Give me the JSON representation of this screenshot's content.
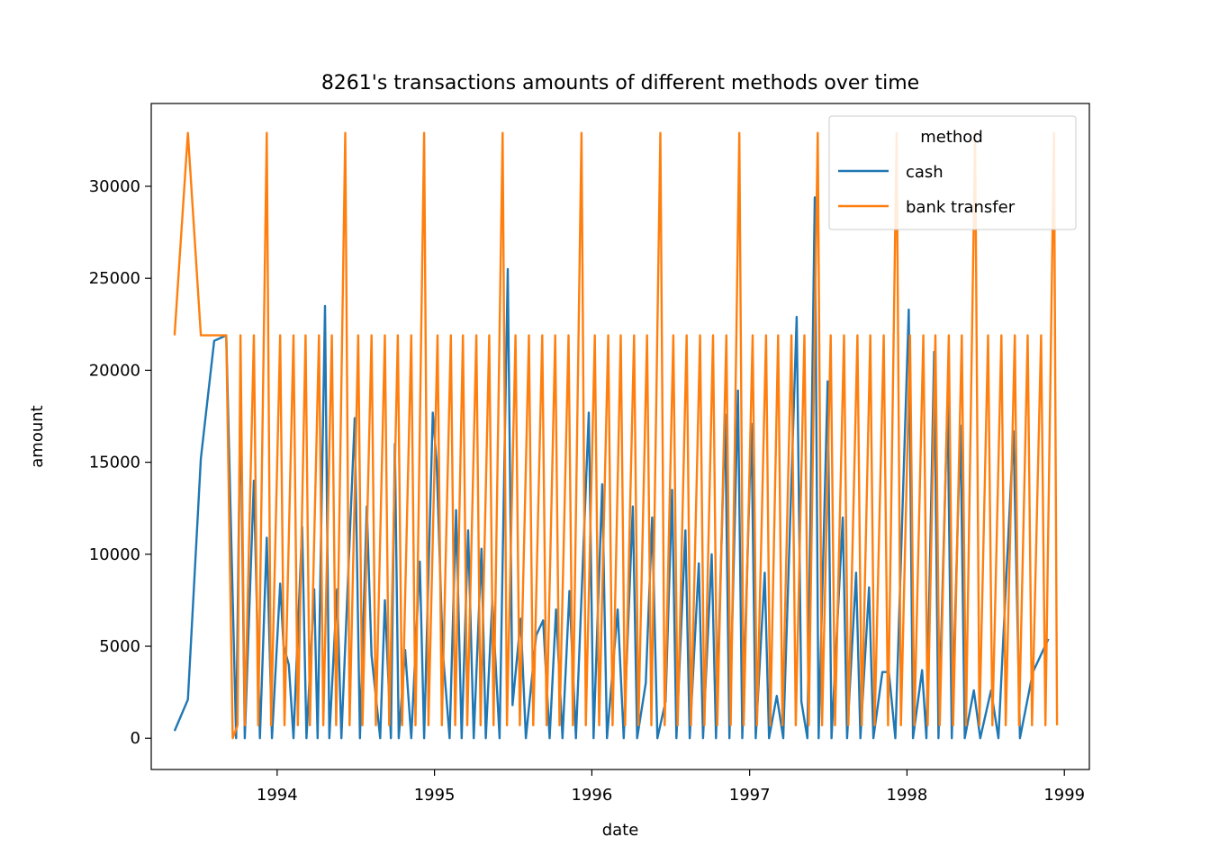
{
  "chart_data": {
    "type": "line",
    "title": "8261's transactions amounts of different methods over time",
    "xlabel": "date",
    "ylabel": "amount",
    "xlim": [
      "1993-03-15",
      "1999-02-28"
    ],
    "ylim": [
      -1700,
      34500
    ],
    "x_ticks": [
      "1994",
      "1995",
      "1996",
      "1997",
      "1998",
      "1999"
    ],
    "y_ticks": [
      "0",
      "5000",
      "10000",
      "15000",
      "20000",
      "25000",
      "30000"
    ],
    "grid": false,
    "legend": {
      "title": "method",
      "position": "upper right",
      "entries": [
        "cash",
        "bank transfer"
      ]
    },
    "series": [
      {
        "name": "cash",
        "color": "#1f77b4",
        "points": [
          [
            "1993-05-08",
            400
          ],
          [
            "1993-06-08",
            2100
          ],
          [
            "1993-07-08",
            15200
          ],
          [
            "1993-08-08",
            21600
          ],
          [
            "1993-09-05",
            21900
          ],
          [
            "1993-09-28",
            0
          ],
          [
            "1993-10-08",
            18700
          ],
          [
            "1993-10-18",
            0
          ],
          [
            "1993-11-08",
            14000
          ],
          [
            "1993-11-22",
            0
          ],
          [
            "1993-12-08",
            10900
          ],
          [
            "1993-12-20",
            0
          ],
          [
            "1994-01-08",
            8400
          ],
          [
            "1994-01-16",
            5000
          ],
          [
            "1994-01-28",
            4000
          ],
          [
            "1994-02-08",
            0
          ],
          [
            "1994-02-28",
            11500
          ],
          [
            "1994-03-10",
            0
          ],
          [
            "1994-03-28",
            8100
          ],
          [
            "1994-04-05",
            0
          ],
          [
            "1994-04-22",
            23500
          ],
          [
            "1994-05-02",
            0
          ],
          [
            "1994-05-20",
            8100
          ],
          [
            "1994-05-30",
            0
          ],
          [
            "1994-06-30",
            17400
          ],
          [
            "1994-07-12",
            0
          ],
          [
            "1994-07-28",
            12600
          ],
          [
            "1994-08-08",
            4500
          ],
          [
            "1994-08-28",
            0
          ],
          [
            "1994-09-08",
            7500
          ],
          [
            "1994-09-22",
            0
          ],
          [
            "1994-10-01",
            16000
          ],
          [
            "1994-10-10",
            0
          ],
          [
            "1994-10-25",
            4800
          ],
          [
            "1994-11-08",
            0
          ],
          [
            "1994-11-28",
            9600
          ],
          [
            "1994-12-08",
            0
          ],
          [
            "1994-12-28",
            17700
          ],
          [
            "1995-01-06",
            15000
          ],
          [
            "1995-01-20",
            4800
          ],
          [
            "1995-02-05",
            0
          ],
          [
            "1995-02-20",
            12400
          ],
          [
            "1995-03-05",
            0
          ],
          [
            "1995-03-20",
            11300
          ],
          [
            "1995-04-02",
            0
          ],
          [
            "1995-04-20",
            10300
          ],
          [
            "1995-04-30",
            0
          ],
          [
            "1995-05-15",
            7500
          ],
          [
            "1995-06-01",
            0
          ],
          [
            "1995-06-20",
            25500
          ],
          [
            "1995-07-01",
            1800
          ],
          [
            "1995-07-20",
            6500
          ],
          [
            "1995-08-01",
            0
          ],
          [
            "1995-08-25",
            5600
          ],
          [
            "1995-09-10",
            6400
          ],
          [
            "1995-09-25",
            0
          ],
          [
            "1995-10-10",
            7000
          ],
          [
            "1995-10-25",
            0
          ],
          [
            "1995-11-10",
            8000
          ],
          [
            "1995-11-25",
            0
          ],
          [
            "1995-12-25",
            17700
          ],
          [
            "1996-01-05",
            0
          ],
          [
            "1996-01-25",
            13800
          ],
          [
            "1996-02-05",
            0
          ],
          [
            "1996-03-01",
            7000
          ],
          [
            "1996-03-15",
            0
          ],
          [
            "1996-04-05",
            12600
          ],
          [
            "1996-04-15",
            0
          ],
          [
            "1996-05-05",
            3000
          ],
          [
            "1996-05-20",
            12000
          ],
          [
            "1996-06-01",
            0
          ],
          [
            "1996-06-20",
            2000
          ],
          [
            "1996-07-05",
            13500
          ],
          [
            "1996-07-15",
            0
          ],
          [
            "1996-08-05",
            11300
          ],
          [
            "1996-08-15",
            0
          ],
          [
            "1996-09-05",
            9500
          ],
          [
            "1996-09-15",
            0
          ],
          [
            "1996-10-05",
            10000
          ],
          [
            "1996-10-15",
            0
          ],
          [
            "1996-11-05",
            17600
          ],
          [
            "1996-11-15",
            0
          ],
          [
            "1996-12-05",
            18900
          ],
          [
            "1996-12-15",
            0
          ],
          [
            "1997-01-05",
            17100
          ],
          [
            "1997-01-15",
            0
          ],
          [
            "1997-02-05",
            9000
          ],
          [
            "1997-02-15",
            0
          ],
          [
            "1997-03-05",
            2300
          ],
          [
            "1997-03-20",
            0
          ],
          [
            "1997-04-20",
            22900
          ],
          [
            "1997-05-01",
            2000
          ],
          [
            "1997-05-15",
            0
          ],
          [
            "1997-06-01",
            29400
          ],
          [
            "1997-06-10",
            0
          ],
          [
            "1997-07-01",
            19400
          ],
          [
            "1997-07-10",
            0
          ],
          [
            "1997-08-05",
            12000
          ],
          [
            "1997-08-15",
            0
          ],
          [
            "1997-09-05",
            9000
          ],
          [
            "1997-09-15",
            0
          ],
          [
            "1997-10-05",
            8200
          ],
          [
            "1997-10-15",
            0
          ],
          [
            "1997-11-05",
            3600
          ],
          [
            "1997-11-20",
            3600
          ],
          [
            "1997-12-05",
            0
          ],
          [
            "1998-01-05",
            23300
          ],
          [
            "1998-01-15",
            0
          ],
          [
            "1998-02-05",
            3700
          ],
          [
            "1998-02-15",
            0
          ],
          [
            "1998-03-05",
            21000
          ],
          [
            "1998-03-15",
            0
          ],
          [
            "1998-04-05",
            18300
          ],
          [
            "1998-04-15",
            0
          ],
          [
            "1998-05-05",
            17000
          ],
          [
            "1998-05-15",
            0
          ],
          [
            "1998-06-05",
            2600
          ],
          [
            "1998-06-20",
            0
          ],
          [
            "1998-07-15",
            2600
          ],
          [
            "1998-08-01",
            0
          ],
          [
            "1998-09-05",
            16700
          ],
          [
            "1998-09-20",
            0
          ],
          [
            "1998-10-20",
            3600
          ],
          [
            "1998-11-25",
            5400
          ]
        ]
      },
      {
        "name": "bank transfer",
        "color": "#ff7f0e",
        "points": [
          [
            "1993-05-08",
            21900
          ],
          [
            "1993-06-08",
            32900
          ],
          [
            "1993-07-08",
            21900
          ],
          [
            "1993-08-08",
            21900
          ],
          [
            "1993-09-05",
            21900
          ],
          [
            "1993-09-20",
            0
          ],
          [
            "1993-10-01",
            700
          ],
          [
            "1993-10-08",
            21900
          ],
          [
            "1993-10-18",
            700
          ],
          [
            "1993-11-08",
            21900
          ],
          [
            "1993-11-18",
            700
          ],
          [
            "1993-12-08",
            32900
          ],
          [
            "1993-12-18",
            700
          ],
          [
            "1994-01-08",
            21900
          ],
          [
            "1994-01-18",
            700
          ],
          [
            "1994-02-08",
            21900
          ],
          [
            "1994-02-18",
            700
          ],
          [
            "1994-03-08",
            21900
          ],
          [
            "1994-03-18",
            700
          ],
          [
            "1994-04-08",
            21900
          ],
          [
            "1994-04-18",
            700
          ],
          [
            "1994-05-08",
            21900
          ],
          [
            "1994-05-18",
            700
          ],
          [
            "1994-06-08",
            32900
          ],
          [
            "1994-06-18",
            700
          ],
          [
            "1994-07-08",
            21900
          ],
          [
            "1994-07-18",
            700
          ],
          [
            "1994-08-08",
            21900
          ],
          [
            "1994-08-18",
            700
          ],
          [
            "1994-09-08",
            21900
          ],
          [
            "1994-09-18",
            700
          ],
          [
            "1994-10-08",
            21900
          ],
          [
            "1994-10-18",
            700
          ],
          [
            "1994-11-08",
            21900
          ],
          [
            "1994-11-18",
            700
          ],
          [
            "1994-12-08",
            32900
          ],
          [
            "1994-12-18",
            700
          ],
          [
            "1995-01-08",
            21900
          ],
          [
            "1995-01-18",
            700
          ],
          [
            "1995-02-08",
            21900
          ],
          [
            "1995-02-18",
            700
          ],
          [
            "1995-03-08",
            21900
          ],
          [
            "1995-03-18",
            700
          ],
          [
            "1995-04-08",
            21900
          ],
          [
            "1995-04-18",
            700
          ],
          [
            "1995-05-08",
            21900
          ],
          [
            "1995-05-18",
            700
          ],
          [
            "1995-06-08",
            32900
          ],
          [
            "1995-06-18",
            700
          ],
          [
            "1995-07-08",
            21900
          ],
          [
            "1995-07-18",
            700
          ],
          [
            "1995-08-08",
            21900
          ],
          [
            "1995-08-18",
            700
          ],
          [
            "1995-09-08",
            21900
          ],
          [
            "1995-09-18",
            700
          ],
          [
            "1995-10-08",
            21900
          ],
          [
            "1995-10-18",
            700
          ],
          [
            "1995-11-08",
            21900
          ],
          [
            "1995-11-18",
            700
          ],
          [
            "1995-12-08",
            32900
          ],
          [
            "1995-12-18",
            700
          ],
          [
            "1996-01-08",
            21900
          ],
          [
            "1996-01-18",
            700
          ],
          [
            "1996-02-08",
            21900
          ],
          [
            "1996-02-18",
            700
          ],
          [
            "1996-03-08",
            21900
          ],
          [
            "1996-03-18",
            700
          ],
          [
            "1996-04-08",
            21900
          ],
          [
            "1996-04-18",
            700
          ],
          [
            "1996-05-08",
            21900
          ],
          [
            "1996-05-18",
            700
          ],
          [
            "1996-06-08",
            32900
          ],
          [
            "1996-06-18",
            700
          ],
          [
            "1996-07-08",
            21900
          ],
          [
            "1996-07-18",
            700
          ],
          [
            "1996-08-08",
            21900
          ],
          [
            "1996-08-18",
            700
          ],
          [
            "1996-09-08",
            21900
          ],
          [
            "1996-09-18",
            700
          ],
          [
            "1996-10-08",
            21900
          ],
          [
            "1996-10-18",
            700
          ],
          [
            "1996-11-08",
            21900
          ],
          [
            "1996-11-18",
            700
          ],
          [
            "1996-12-08",
            32900
          ],
          [
            "1996-12-18",
            700
          ],
          [
            "1997-01-08",
            21900
          ],
          [
            "1997-01-18",
            700
          ],
          [
            "1997-02-08",
            21900
          ],
          [
            "1997-02-18",
            700
          ],
          [
            "1997-03-08",
            21900
          ],
          [
            "1997-03-18",
            700
          ],
          [
            "1997-04-08",
            21900
          ],
          [
            "1997-04-18",
            700
          ],
          [
            "1997-05-08",
            21900
          ],
          [
            "1997-05-18",
            700
          ],
          [
            "1997-06-08",
            32900
          ],
          [
            "1997-06-18",
            700
          ],
          [
            "1997-07-08",
            21900
          ],
          [
            "1997-07-18",
            700
          ],
          [
            "1997-08-08",
            21900
          ],
          [
            "1997-08-18",
            700
          ],
          [
            "1997-09-08",
            21900
          ],
          [
            "1997-09-18",
            700
          ],
          [
            "1997-10-08",
            21900
          ],
          [
            "1997-10-18",
            700
          ],
          [
            "1997-11-08",
            21900
          ],
          [
            "1997-11-18",
            700
          ],
          [
            "1997-12-08",
            32900
          ],
          [
            "1997-12-18",
            700
          ],
          [
            "1998-01-08",
            21900
          ],
          [
            "1998-01-18",
            700
          ],
          [
            "1998-02-08",
            21900
          ],
          [
            "1998-02-18",
            700
          ],
          [
            "1998-03-08",
            21900
          ],
          [
            "1998-03-18",
            700
          ],
          [
            "1998-04-08",
            21900
          ],
          [
            "1998-04-18",
            700
          ],
          [
            "1998-05-08",
            21900
          ],
          [
            "1998-05-18",
            700
          ],
          [
            "1998-06-08",
            32900
          ],
          [
            "1998-06-18",
            700
          ],
          [
            "1998-07-08",
            21900
          ],
          [
            "1998-07-18",
            700
          ],
          [
            "1998-08-08",
            21900
          ],
          [
            "1998-08-18",
            700
          ],
          [
            "1998-09-08",
            21900
          ],
          [
            "1998-09-18",
            700
          ],
          [
            "1998-10-08",
            21900
          ],
          [
            "1998-10-18",
            700
          ],
          [
            "1998-11-08",
            21900
          ],
          [
            "1998-11-18",
            700
          ],
          [
            "1998-12-08",
            32900
          ],
          [
            "1998-12-15",
            700
          ]
        ]
      }
    ]
  }
}
